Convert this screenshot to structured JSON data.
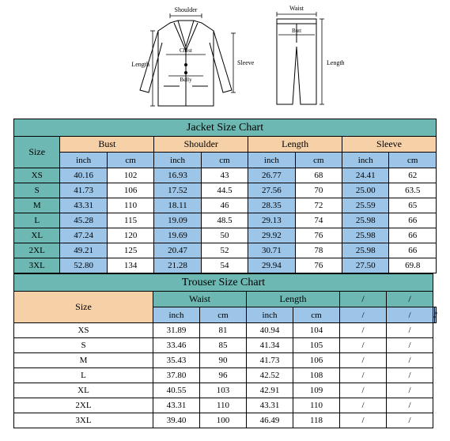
{
  "colors": {
    "teal": "#6db8b3",
    "peach": "#f6d1a8",
    "blue": "#9cc5e8",
    "white": "#ffffff",
    "border": "#000000"
  },
  "diagram": {
    "jacket": {
      "shoulder": "Shoulder",
      "length": "Length",
      "chest": "Chest",
      "belly": "Belly",
      "sleeve": "Sleeve"
    },
    "trouser": {
      "waist": "Waist",
      "butt": "Butt",
      "length": "Length"
    }
  },
  "jacket": {
    "title": "Jacket Size Chart",
    "size_label": "Size",
    "groups": [
      "Bust",
      "Shoulder",
      "Length",
      "Sleeve"
    ],
    "sub": [
      "inch",
      "cm",
      "inch",
      "cm",
      "inch",
      "cm",
      "inch",
      "cm"
    ],
    "rows": [
      {
        "size": "XS",
        "cells": [
          "40.16",
          "102",
          "16.93",
          "43",
          "26.77",
          "68",
          "24.41",
          "62"
        ]
      },
      {
        "size": "S",
        "cells": [
          "41.73",
          "106",
          "17.52",
          "44.5",
          "27.56",
          "70",
          "25.00",
          "63.5"
        ]
      },
      {
        "size": "M",
        "cells": [
          "43.31",
          "110",
          "18.11",
          "46",
          "28.35",
          "72",
          "25.59",
          "65"
        ]
      },
      {
        "size": "L",
        "cells": [
          "45.28",
          "115",
          "19.09",
          "48.5",
          "29.13",
          "74",
          "25.98",
          "66"
        ]
      },
      {
        "size": "XL",
        "cells": [
          "47.24",
          "120",
          "19.69",
          "50",
          "29.92",
          "76",
          "25.98",
          "66"
        ]
      },
      {
        "size": "2XL",
        "cells": [
          "49.21",
          "125",
          "20.47",
          "52",
          "30.71",
          "78",
          "25.98",
          "66"
        ]
      },
      {
        "size": "3XL",
        "cells": [
          "52.80",
          "134",
          "21.28",
          "54",
          "29.94",
          "76",
          "27.50",
          "69.8"
        ]
      }
    ]
  },
  "trouser": {
    "title": "Trouser Size Chart",
    "size_label": "Size",
    "groups": [
      "Waist",
      "Length",
      "/",
      "/"
    ],
    "sub": [
      "inch",
      "cm",
      "inch",
      "cm",
      "/",
      "/",
      "/",
      "/"
    ],
    "rows": [
      {
        "size": "XS",
        "cells": [
          "31.89",
          "81",
          "40.94",
          "104",
          "/",
          "/",
          "/",
          "/"
        ]
      },
      {
        "size": "S",
        "cells": [
          "33.46",
          "85",
          "41.34",
          "105",
          "/",
          "/",
          "/",
          "/"
        ]
      },
      {
        "size": "M",
        "cells": [
          "35.43",
          "90",
          "41.73",
          "106",
          "/",
          "/",
          "/",
          "/"
        ]
      },
      {
        "size": "L",
        "cells": [
          "37.80",
          "96",
          "42.52",
          "108",
          "/",
          "/",
          "/",
          "/"
        ]
      },
      {
        "size": "XL",
        "cells": [
          "40.55",
          "103",
          "42.91",
          "109",
          "/",
          "/",
          "/",
          "/"
        ]
      },
      {
        "size": "2XL",
        "cells": [
          "43.31",
          "110",
          "43.31",
          "110",
          "/",
          "/",
          "/",
          "/"
        ]
      },
      {
        "size": "3XL",
        "cells": [
          "39.40",
          "100",
          "46.49",
          "118",
          "/",
          "/",
          "/",
          "/"
        ]
      }
    ]
  }
}
